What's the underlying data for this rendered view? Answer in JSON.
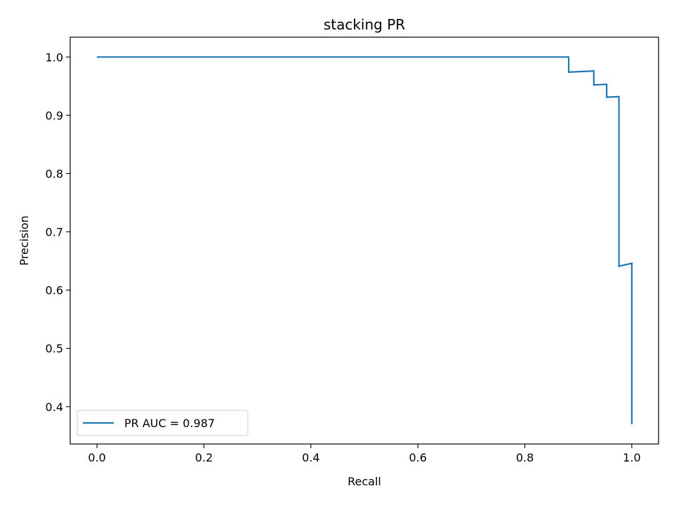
{
  "chart_data": {
    "type": "line",
    "title": "stacking PR",
    "xlabel": "Recall",
    "ylabel": "Precision",
    "xlim": [
      -0.05,
      1.05
    ],
    "ylim": [
      0.336,
      1.034
    ],
    "xticks": [
      "0.0",
      "0.2",
      "0.4",
      "0.6",
      "0.8",
      "1.0"
    ],
    "yticks": [
      "0.4",
      "0.5",
      "0.6",
      "0.7",
      "0.8",
      "0.9",
      "1.0"
    ],
    "grid": false,
    "legend_position": "lower-left",
    "series": [
      {
        "name": "PR AUC = 0.987",
        "color": "#1f77b4",
        "step": true,
        "recall": [
          0.0,
          0.882,
          0.882,
          0.929,
          0.929,
          0.953,
          0.953,
          0.976,
          0.976,
          1.0,
          1.0
        ],
        "precision": [
          1.0,
          1.0,
          0.974,
          0.976,
          0.952,
          0.953,
          0.931,
          0.932,
          0.641,
          0.646,
          0.37
        ]
      }
    ]
  }
}
